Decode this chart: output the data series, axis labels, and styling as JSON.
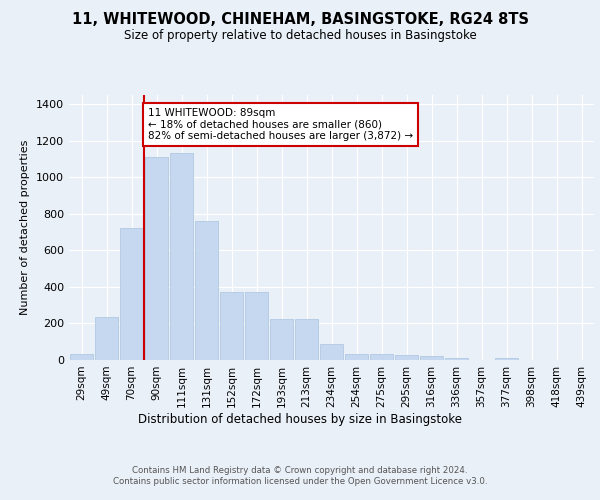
{
  "title": "11, WHITEWOOD, CHINEHAM, BASINGSTOKE, RG24 8TS",
  "subtitle": "Size of property relative to detached houses in Basingstoke",
  "xlabel": "Distribution of detached houses by size in Basingstoke",
  "ylabel": "Number of detached properties",
  "categories": [
    "29sqm",
    "49sqm",
    "70sqm",
    "90sqm",
    "111sqm",
    "131sqm",
    "152sqm",
    "172sqm",
    "193sqm",
    "213sqm",
    "234sqm",
    "254sqm",
    "275sqm",
    "295sqm",
    "316sqm",
    "336sqm",
    "357sqm",
    "377sqm",
    "398sqm",
    "418sqm",
    "439sqm"
  ],
  "values": [
    35,
    238,
    720,
    1110,
    1130,
    760,
    370,
    370,
    225,
    225,
    85,
    35,
    35,
    25,
    20,
    12,
    0,
    12,
    0,
    0,
    0
  ],
  "bar_color": "#c5d8f0",
  "bar_edge_color": "#a8c4e0",
  "vline_color": "#cc0000",
  "annotation_text": "11 WHITEWOOD: 89sqm\n← 18% of detached houses are smaller (860)\n82% of semi-detached houses are larger (3,872) →",
  "annotation_box_color": "#ffffff",
  "annotation_box_edge": "#cc0000",
  "ylim": [
    0,
    1450
  ],
  "yticks": [
    0,
    200,
    400,
    600,
    800,
    1000,
    1200,
    1400
  ],
  "footer1": "Contains HM Land Registry data © Crown copyright and database right 2024.",
  "footer2": "Contains public sector information licensed under the Open Government Licence v3.0.",
  "bg_color": "#eaf0f8",
  "plot_bg_color": "#eaf0f8"
}
